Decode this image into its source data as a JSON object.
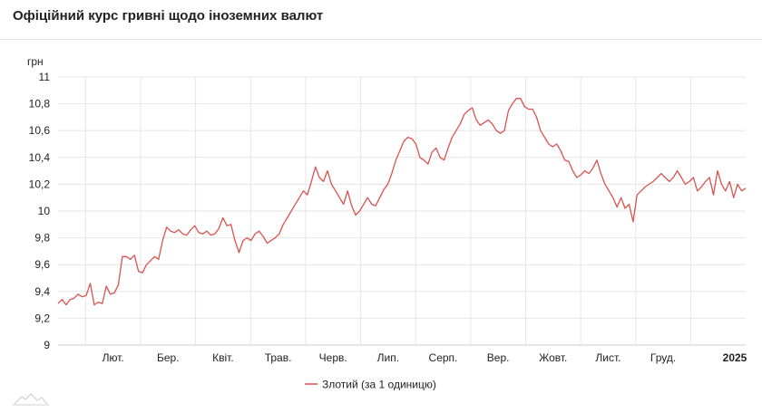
{
  "header": {
    "title": "Офіційний курс гривні щодо іноземних валют"
  },
  "colors": {
    "line": "#d9534f",
    "grid": "#e6e6e6",
    "axis": "#cccccc"
  },
  "chart_data": {
    "type": "line",
    "title": "",
    "ylabel": "грн",
    "xlabel": "",
    "ylim": [
      9,
      11
    ],
    "yticks": [
      "9",
      "9,2",
      "9,4",
      "9,6",
      "9,8",
      "10",
      "10,2",
      "10,4",
      "10,6",
      "10,8",
      "11"
    ],
    "xticks": [
      {
        "label": "Лют.",
        "bold": false
      },
      {
        "label": "Бер.",
        "bold": false
      },
      {
        "label": "Квіт.",
        "bold": false
      },
      {
        "label": "Трав.",
        "bold": false
      },
      {
        "label": "Черв.",
        "bold": false
      },
      {
        "label": "Лип.",
        "bold": false
      },
      {
        "label": "Серп.",
        "bold": false
      },
      {
        "label": "Вер.",
        "bold": false
      },
      {
        "label": "Жовт.",
        "bold": false
      },
      {
        "label": "Лист.",
        "bold": false
      },
      {
        "label": "Груд.",
        "bold": false
      },
      {
        "label": "2025",
        "bold": true
      }
    ],
    "grid": true,
    "legend": "bottom",
    "series": [
      {
        "name": "Злотий (за 1 одиницю)",
        "values": [
          9.31,
          9.34,
          9.3,
          9.34,
          9.35,
          9.38,
          9.36,
          9.37,
          9.46,
          9.3,
          9.32,
          9.31,
          9.44,
          9.38,
          9.39,
          9.45,
          9.66,
          9.66,
          9.64,
          9.67,
          9.55,
          9.54,
          9.6,
          9.63,
          9.66,
          9.64,
          9.78,
          9.88,
          9.85,
          9.84,
          9.86,
          9.83,
          9.82,
          9.86,
          9.89,
          9.84,
          9.83,
          9.85,
          9.82,
          9.83,
          9.87,
          9.95,
          9.89,
          9.9,
          9.78,
          9.69,
          9.78,
          9.8,
          9.78,
          9.83,
          9.85,
          9.81,
          9.76,
          9.78,
          9.8,
          9.83,
          9.9,
          9.95,
          10.0,
          10.05,
          10.1,
          10.15,
          10.12,
          10.22,
          10.33,
          10.25,
          10.22,
          10.3,
          10.2,
          10.15,
          10.1,
          10.05,
          10.15,
          10.04,
          9.97,
          10.0,
          10.05,
          10.1,
          10.05,
          10.04,
          10.1,
          10.16,
          10.2,
          10.28,
          10.38,
          10.45,
          10.52,
          10.55,
          10.54,
          10.5,
          10.4,
          10.38,
          10.35,
          10.44,
          10.47,
          10.4,
          10.38,
          10.47,
          10.55,
          10.6,
          10.65,
          10.72,
          10.75,
          10.77,
          10.68,
          10.64,
          10.66,
          10.68,
          10.65,
          10.6,
          10.58,
          10.6,
          10.75,
          10.8,
          10.84,
          10.84,
          10.78,
          10.76,
          10.76,
          10.7,
          10.6,
          10.55,
          10.5,
          10.48,
          10.5,
          10.45,
          10.38,
          10.37,
          10.3,
          10.25,
          10.27,
          10.3,
          10.28,
          10.32,
          10.38,
          10.28,
          10.2,
          10.15,
          10.1,
          10.03,
          10.1,
          10.02,
          10.05,
          9.92,
          10.12,
          10.15,
          10.18,
          10.2,
          10.22,
          10.25,
          10.28,
          10.25,
          10.22,
          10.25,
          10.3,
          10.25,
          10.2,
          10.22,
          10.25,
          10.15,
          10.18,
          10.22,
          10.25,
          10.12,
          10.3,
          10.2,
          10.15,
          10.22,
          10.1,
          10.2,
          10.15,
          10.17
        ]
      }
    ]
  }
}
